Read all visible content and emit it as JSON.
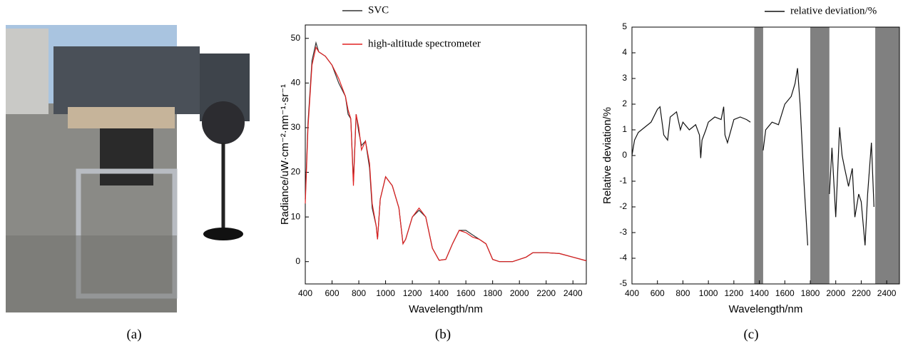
{
  "panel_labels": [
    "(a)",
    "(b)",
    "(c)"
  ],
  "chart_data": [
    {
      "type": "line",
      "xlabel": "Wavelength/nm",
      "ylabel": "Radiance/uW·cm⁻²·nm⁻¹·sr⁻¹",
      "x": [
        400,
        420,
        450,
        480,
        500,
        550,
        600,
        650,
        700,
        720,
        740,
        760,
        780,
        800,
        820,
        850,
        880,
        900,
        930,
        940,
        960,
        1000,
        1050,
        1100,
        1130,
        1150,
        1200,
        1250,
        1300,
        1350,
        1400,
        1450,
        1500,
        1550,
        1600,
        1650,
        1700,
        1750,
        1800,
        1850,
        1900,
        1950,
        2000,
        2050,
        2100,
        2150,
        2200,
        2300,
        2400,
        2500
      ],
      "series": [
        {
          "name": "SVC",
          "color": "#333333",
          "values": [
            14,
            31,
            45,
            49,
            47,
            46,
            44,
            40,
            37,
            33,
            32,
            18,
            33,
            29,
            26,
            27,
            21,
            12,
            8,
            5,
            14,
            19,
            17,
            12,
            4,
            5,
            10,
            11.5,
            10,
            3,
            0.3,
            0.5,
            4,
            7,
            7,
            6,
            5,
            4,
            0.5,
            0,
            0,
            0,
            0.5,
            1,
            2,
            2,
            2,
            1.8,
            1,
            0.2
          ]
        },
        {
          "name": "high-altitude spectrometer",
          "color": "#e02020",
          "values": [
            13,
            30,
            44,
            48,
            47,
            46,
            44,
            41,
            37,
            34,
            32,
            17,
            33,
            30,
            25,
            27,
            22,
            13,
            8,
            5,
            14,
            19,
            17,
            12,
            4,
            5,
            10,
            12,
            10,
            3,
            0.3,
            0.5,
            4,
            7,
            6.5,
            5.5,
            5,
            4,
            0.5,
            0,
            0,
            0,
            0.5,
            1,
            2,
            2,
            2,
            1.8,
            1,
            0.2
          ]
        }
      ],
      "xlim": [
        400,
        2500
      ],
      "ylim": [
        -5,
        53
      ],
      "xticks": [
        400,
        600,
        800,
        1000,
        1200,
        1400,
        1600,
        1800,
        2000,
        2200,
        2400
      ],
      "yticks": [
        0,
        10,
        20,
        30,
        40,
        50
      ]
    },
    {
      "type": "line",
      "xlabel": "Wavelength/nm",
      "ylabel": "Relative deviation/%",
      "x": [
        400,
        420,
        450,
        500,
        550,
        600,
        620,
        650,
        680,
        700,
        750,
        780,
        800,
        850,
        900,
        930,
        940,
        950,
        980,
        1000,
        1050,
        1100,
        1120,
        1130,
        1150,
        1200,
        1250,
        1300,
        1330,
        1350,
        1400,
        1430,
        1450,
        1500,
        1550,
        1600,
        1650,
        1680,
        1700,
        1720,
        1750,
        1780,
        1800,
        1950,
        1970,
        2000,
        2030,
        2050,
        2070,
        2100,
        2130,
        2150,
        2180,
        2200,
        2230,
        2250,
        2280,
        2300
      ],
      "series": [
        {
          "name": "relative deviation/%",
          "color": "#111111",
          "values": [
            0,
            0.6,
            0.9,
            1.1,
            1.3,
            1.8,
            1.9,
            0.8,
            0.6,
            1.5,
            1.7,
            1.0,
            1.3,
            1.0,
            1.2,
            0.8,
            -0.1,
            0.6,
            1.0,
            1.3,
            1.5,
            1.4,
            1.9,
            0.8,
            0.5,
            1.4,
            1.5,
            1.4,
            1.3,
            null,
            null,
            0.2,
            1.0,
            1.3,
            1.2,
            2.0,
            2.3,
            2.8,
            3.4,
            2.0,
            -1.0,
            -3.5,
            null,
            -1.5,
            0.3,
            -2.4,
            1.1,
            0.0,
            -0.5,
            -1.2,
            -0.5,
            -2.4,
            -1.5,
            -1.8,
            -3.5,
            -1.5,
            0.5,
            -2.0
          ]
        }
      ],
      "shaded_ranges": [
        [
          1360,
          1430
        ],
        [
          1800,
          1950
        ],
        [
          2310,
          2500
        ]
      ],
      "shade_color": "#808080",
      "xlim": [
        400,
        2500
      ],
      "ylim": [
        -5,
        5
      ],
      "xticks": [
        400,
        600,
        800,
        1000,
        1200,
        1400,
        1600,
        1800,
        2000,
        2200,
        2400
      ],
      "yticks": [
        -5,
        -4,
        -3,
        -2,
        -1,
        0,
        1,
        2,
        3,
        4,
        5
      ]
    }
  ]
}
